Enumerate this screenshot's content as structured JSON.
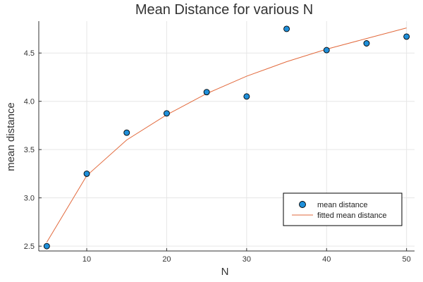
{
  "chart_data": {
    "type": "scatter",
    "title": "Mean Distance for various N",
    "xlabel": "N",
    "ylabel": "mean distance",
    "xlim": [
      4,
      51
    ],
    "ylim": [
      2.45,
      4.83
    ],
    "xticks": [
      10,
      20,
      30,
      40,
      50
    ],
    "yticks": [
      2.5,
      3.0,
      3.5,
      4.0,
      4.5
    ],
    "ytick_labels": [
      "2.5",
      "3.0",
      "3.5",
      "4.0",
      "4.5"
    ],
    "grid": true,
    "legend_position": "bottom-right",
    "series": [
      {
        "name": "mean distance",
        "kind": "scatter",
        "color": "#1f8fd9",
        "x": [
          5,
          10,
          15,
          20,
          25,
          30,
          35,
          40,
          45,
          50
        ],
        "y": [
          2.5,
          3.25,
          3.675,
          3.875,
          4.095,
          4.05,
          4.75,
          4.53,
          4.6,
          4.67
        ]
      },
      {
        "name": "fitted mean distance",
        "kind": "line",
        "color": "#e26a3d",
        "x": [
          5,
          10,
          15,
          20,
          25,
          30,
          35,
          40,
          45,
          50
        ],
        "y": [
          2.54,
          3.23,
          3.6,
          3.86,
          4.08,
          4.26,
          4.41,
          4.54,
          4.65,
          4.76
        ]
      }
    ]
  }
}
